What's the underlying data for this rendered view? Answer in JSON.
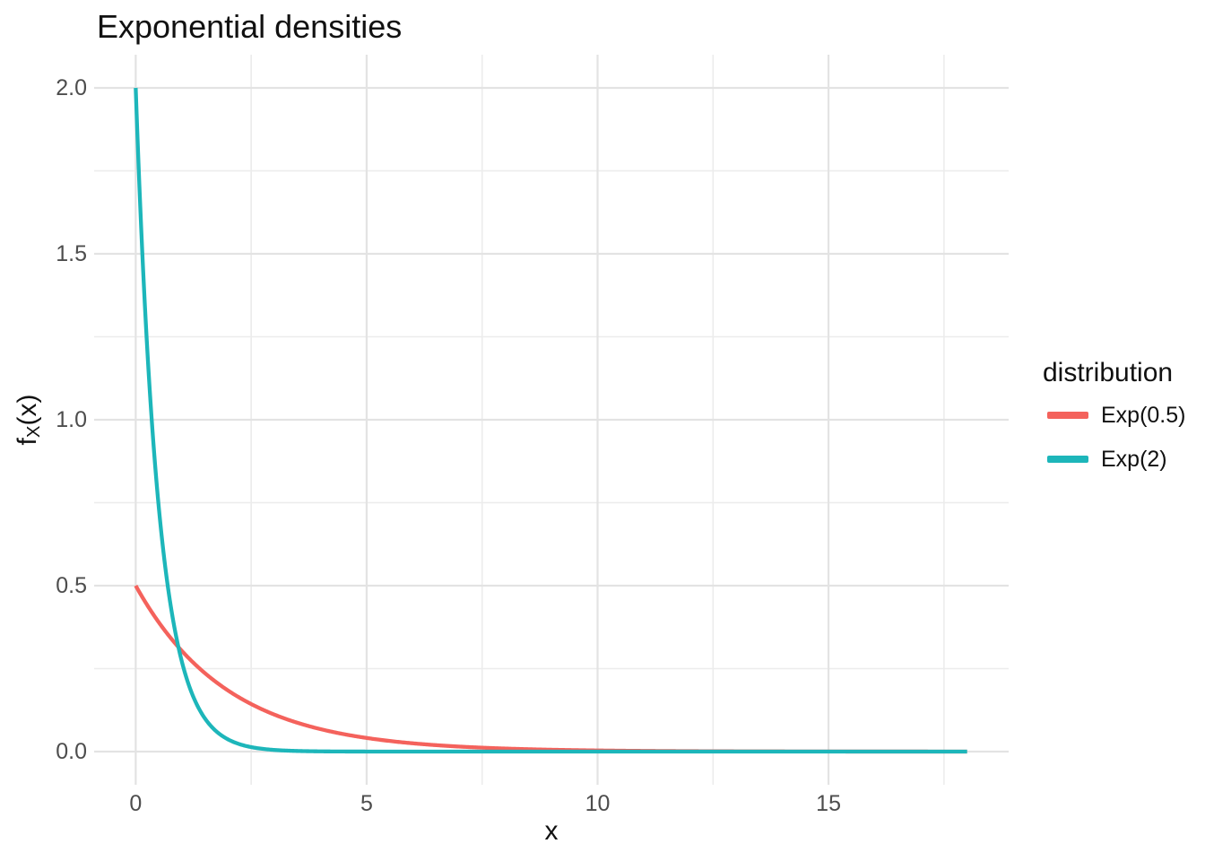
{
  "background_color": "#FFFFFF",
  "chart_data": {
    "type": "line",
    "title": "Exponential densities",
    "xlabel": "x",
    "ylabel": "fX(x)",
    "ylabel_parts": {
      "base": "f",
      "subscript": "X",
      "rest": "(x)"
    },
    "x_ticks": [
      {
        "value": 0,
        "label": "0"
      },
      {
        "value": 5,
        "label": "5"
      },
      {
        "value": 10,
        "label": "10"
      },
      {
        "value": 15,
        "label": "15"
      }
    ],
    "x_minor_ticks": [
      2.5,
      7.5,
      12.5,
      17.5
    ],
    "y_ticks": [
      {
        "value": 0.0,
        "label": "0.0"
      },
      {
        "value": 0.5,
        "label": "0.5"
      },
      {
        "value": 1.0,
        "label": "1.0"
      },
      {
        "value": 1.5,
        "label": "1.5"
      },
      {
        "value": 2.0,
        "label": "2.0"
      }
    ],
    "y_minor_ticks": [
      0.25,
      0.75,
      1.25,
      1.75
    ],
    "x_domain": [
      -0.9,
      18.9
    ],
    "y_domain": [
      -0.1,
      2.1
    ],
    "x_data_range": [
      0,
      18
    ],
    "grid": {
      "on": true,
      "major_color": "#E3E3E3",
      "minor_color": "#ECECEC",
      "panel_background": "#FFFFFF"
    },
    "tick_label_color": "#4D4D4D",
    "legend": {
      "title": "distribution",
      "position": "right",
      "entries": [
        {
          "label": "Exp(0.5)",
          "color": "#F4625C"
        },
        {
          "label": "Exp(2)",
          "color": "#1DB6BA"
        }
      ]
    },
    "series": [
      {
        "name": "Exp(0.5)",
        "color": "#F4625C",
        "rate": 0.5,
        "function": "f(x) = 0.5 * exp(-0.5 * x)",
        "points": {
          "x": [
            0,
            1,
            2,
            3,
            4,
            5,
            6,
            7,
            8,
            9,
            10,
            11,
            12,
            13,
            14,
            15,
            16,
            17,
            18
          ],
          "y": [
            0.5,
            0.30327,
            0.18394,
            0.11157,
            0.06767,
            0.04104,
            0.02489,
            0.0151,
            0.00916,
            0.00555,
            0.00337,
            0.00204,
            0.00124,
            0.00075,
            0.00046,
            0.00028,
            0.00017,
            0.0001,
            6e-05
          ]
        }
      },
      {
        "name": "Exp(2)",
        "color": "#1DB6BA",
        "rate": 2,
        "function": "f(x) = 2 * exp(-2 * x)",
        "points": {
          "x": [
            0,
            1,
            2,
            3,
            4,
            5,
            6,
            7,
            8,
            9,
            10,
            11,
            12,
            13,
            14,
            15,
            16,
            17,
            18
          ],
          "y": [
            2.0,
            0.27067,
            0.03663,
            0.00496,
            0.00067,
            9e-05,
            1e-05,
            0,
            0,
            0,
            0,
            0,
            0,
            0,
            0,
            0,
            0,
            0,
            0
          ]
        }
      }
    ]
  }
}
